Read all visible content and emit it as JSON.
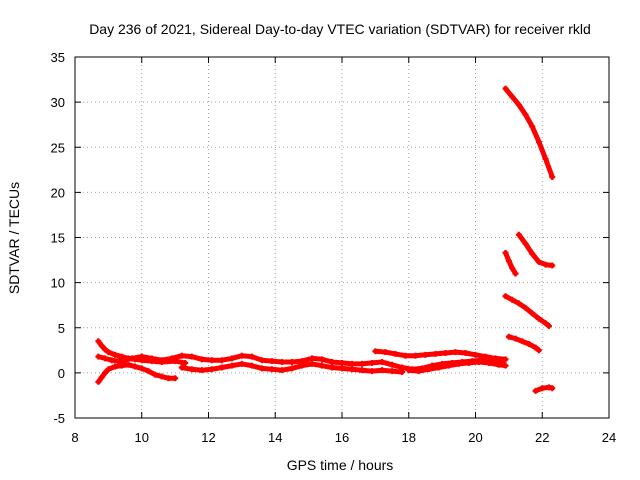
{
  "chart_data": {
    "type": "scatter",
    "title": "Day 236 of 2021, Sidereal Day-to-day VTEC variation (SDTVAR) for receiver rkld",
    "xlabel": "GPS time / hours",
    "ylabel": "SDTVAR / TECUs",
    "xlim": [
      8,
      24
    ],
    "ylim": [
      -5,
      35
    ],
    "xticks": [
      8,
      10,
      12,
      14,
      16,
      18,
      20,
      22,
      24
    ],
    "yticks": [
      -5,
      0,
      5,
      10,
      15,
      20,
      25,
      30,
      35
    ],
    "grid": true,
    "grid_style": "dotted",
    "series_color": "#ff0000",
    "series": [
      {
        "name": "arc-1",
        "points": [
          [
            8.7,
            3.5
          ],
          [
            8.8,
            3.0
          ],
          [
            8.9,
            2.6
          ],
          [
            9.0,
            2.3
          ],
          [
            9.2,
            2.0
          ],
          [
            9.4,
            1.8
          ],
          [
            9.6,
            1.6
          ],
          [
            9.8,
            1.5
          ],
          [
            10.0,
            1.4
          ],
          [
            10.3,
            1.3
          ],
          [
            10.6,
            1.2
          ],
          [
            11.0,
            1.3
          ],
          [
            11.3,
            1.1
          ]
        ]
      },
      {
        "name": "arc-2",
        "points": [
          [
            8.7,
            -1.0
          ],
          [
            8.8,
            -0.5
          ],
          [
            8.9,
            0.0
          ],
          [
            9.0,
            0.4
          ],
          [
            9.2,
            0.7
          ],
          [
            9.4,
            0.8
          ],
          [
            9.6,
            0.9
          ],
          [
            9.8,
            0.7
          ],
          [
            10.0,
            0.5
          ],
          [
            10.2,
            0.2
          ],
          [
            10.4,
            -0.2
          ],
          [
            10.6,
            -0.4
          ],
          [
            10.8,
            -0.6
          ],
          [
            11.0,
            -0.6
          ]
        ]
      },
      {
        "name": "arc-3",
        "points": [
          [
            8.7,
            1.8
          ],
          [
            8.9,
            1.6
          ],
          [
            9.1,
            1.4
          ],
          [
            9.3,
            1.3
          ],
          [
            9.5,
            1.4
          ],
          [
            9.7,
            1.6
          ],
          [
            10.0,
            1.8
          ],
          [
            10.3,
            1.6
          ],
          [
            10.6,
            1.4
          ],
          [
            10.9,
            1.6
          ],
          [
            11.2,
            1.9
          ],
          [
            11.5,
            1.8
          ],
          [
            11.8,
            1.5
          ],
          [
            12.1,
            1.4
          ],
          [
            12.4,
            1.4
          ],
          [
            12.7,
            1.6
          ],
          [
            13.0,
            1.9
          ],
          [
            13.3,
            1.8
          ],
          [
            13.6,
            1.4
          ],
          [
            13.9,
            1.3
          ],
          [
            14.2,
            1.2
          ],
          [
            14.5,
            1.2
          ],
          [
            14.8,
            1.3
          ],
          [
            15.1,
            1.6
          ],
          [
            15.4,
            1.5
          ],
          [
            15.7,
            1.2
          ],
          [
            16.0,
            1.1
          ],
          [
            16.3,
            1.0
          ],
          [
            16.6,
            1.0
          ],
          [
            16.9,
            1.1
          ],
          [
            17.2,
            1.2
          ],
          [
            17.5,
            0.9
          ],
          [
            17.8,
            0.6
          ],
          [
            18.1,
            0.4
          ],
          [
            18.4,
            0.5
          ],
          [
            18.7,
            0.8
          ],
          [
            19.0,
            1.0
          ],
          [
            19.3,
            1.1
          ],
          [
            19.6,
            1.2
          ],
          [
            19.9,
            1.3
          ],
          [
            20.2,
            1.4
          ],
          [
            20.5,
            1.4
          ],
          [
            20.8,
            1.2
          ]
        ]
      },
      {
        "name": "arc-4",
        "points": [
          [
            11.2,
            0.6
          ],
          [
            11.5,
            0.4
          ],
          [
            11.8,
            0.3
          ],
          [
            12.1,
            0.4
          ],
          [
            12.4,
            0.6
          ],
          [
            12.7,
            0.8
          ],
          [
            13.0,
            1.0
          ],
          [
            13.3,
            0.8
          ],
          [
            13.6,
            0.5
          ],
          [
            13.9,
            0.4
          ],
          [
            14.2,
            0.3
          ],
          [
            14.5,
            0.5
          ],
          [
            14.8,
            0.8
          ],
          [
            15.1,
            1.0
          ],
          [
            15.4,
            0.8
          ],
          [
            15.7,
            0.6
          ],
          [
            16.0,
            0.5
          ],
          [
            16.3,
            0.4
          ],
          [
            16.6,
            0.3
          ],
          [
            16.9,
            0.2
          ],
          [
            17.2,
            0.3
          ],
          [
            17.5,
            0.2
          ],
          [
            17.8,
            0.1
          ]
        ]
      },
      {
        "name": "arc-5",
        "points": [
          [
            17.0,
            2.4
          ],
          [
            17.3,
            2.3
          ],
          [
            17.6,
            2.1
          ],
          [
            17.9,
            1.9
          ],
          [
            18.2,
            1.9
          ],
          [
            18.5,
            2.0
          ],
          [
            18.8,
            2.1
          ],
          [
            19.1,
            2.2
          ],
          [
            19.4,
            2.3
          ],
          [
            19.7,
            2.2
          ],
          [
            20.0,
            2.0
          ],
          [
            20.3,
            1.8
          ],
          [
            20.6,
            1.6
          ],
          [
            20.9,
            1.5
          ]
        ]
      },
      {
        "name": "arc-6",
        "points": [
          [
            18.0,
            0.3
          ],
          [
            18.3,
            0.2
          ],
          [
            18.6,
            0.4
          ],
          [
            18.9,
            0.6
          ],
          [
            19.2,
            0.8
          ],
          [
            19.5,
            1.0
          ],
          [
            19.8,
            1.1
          ],
          [
            20.1,
            1.2
          ],
          [
            20.4,
            1.1
          ],
          [
            20.7,
            0.9
          ],
          [
            20.9,
            0.8
          ]
        ]
      },
      {
        "name": "arc-7",
        "points": [
          [
            20.9,
            31.5
          ],
          [
            21.1,
            30.6
          ],
          [
            21.3,
            29.7
          ],
          [
            21.5,
            28.6
          ],
          [
            21.7,
            27.3
          ],
          [
            21.9,
            25.6
          ],
          [
            22.1,
            23.7
          ],
          [
            22.3,
            21.7
          ]
        ]
      },
      {
        "name": "arc-8",
        "points": [
          [
            20.9,
            13.3
          ],
          [
            21.0,
            12.4
          ],
          [
            21.1,
            11.6
          ],
          [
            21.2,
            11.0
          ]
        ]
      },
      {
        "name": "arc-9",
        "points": [
          [
            21.3,
            15.3
          ],
          [
            21.5,
            14.3
          ],
          [
            21.7,
            13.2
          ],
          [
            21.9,
            12.3
          ],
          [
            22.1,
            12.0
          ],
          [
            22.3,
            11.9
          ]
        ]
      },
      {
        "name": "arc-10",
        "points": [
          [
            20.9,
            8.5
          ],
          [
            21.1,
            8.1
          ],
          [
            21.3,
            7.7
          ],
          [
            21.5,
            7.2
          ],
          [
            21.7,
            6.6
          ],
          [
            21.9,
            6.0
          ],
          [
            22.1,
            5.5
          ],
          [
            22.2,
            5.2
          ]
        ]
      },
      {
        "name": "arc-11",
        "points": [
          [
            21.0,
            4.0
          ],
          [
            21.2,
            3.8
          ],
          [
            21.4,
            3.5
          ],
          [
            21.6,
            3.2
          ],
          [
            21.8,
            2.8
          ],
          [
            21.9,
            2.5
          ]
        ]
      },
      {
        "name": "arc-12",
        "points": [
          [
            21.8,
            -2.0
          ],
          [
            22.0,
            -1.7
          ],
          [
            22.2,
            -1.6
          ],
          [
            22.3,
            -1.7
          ]
        ]
      }
    ]
  }
}
